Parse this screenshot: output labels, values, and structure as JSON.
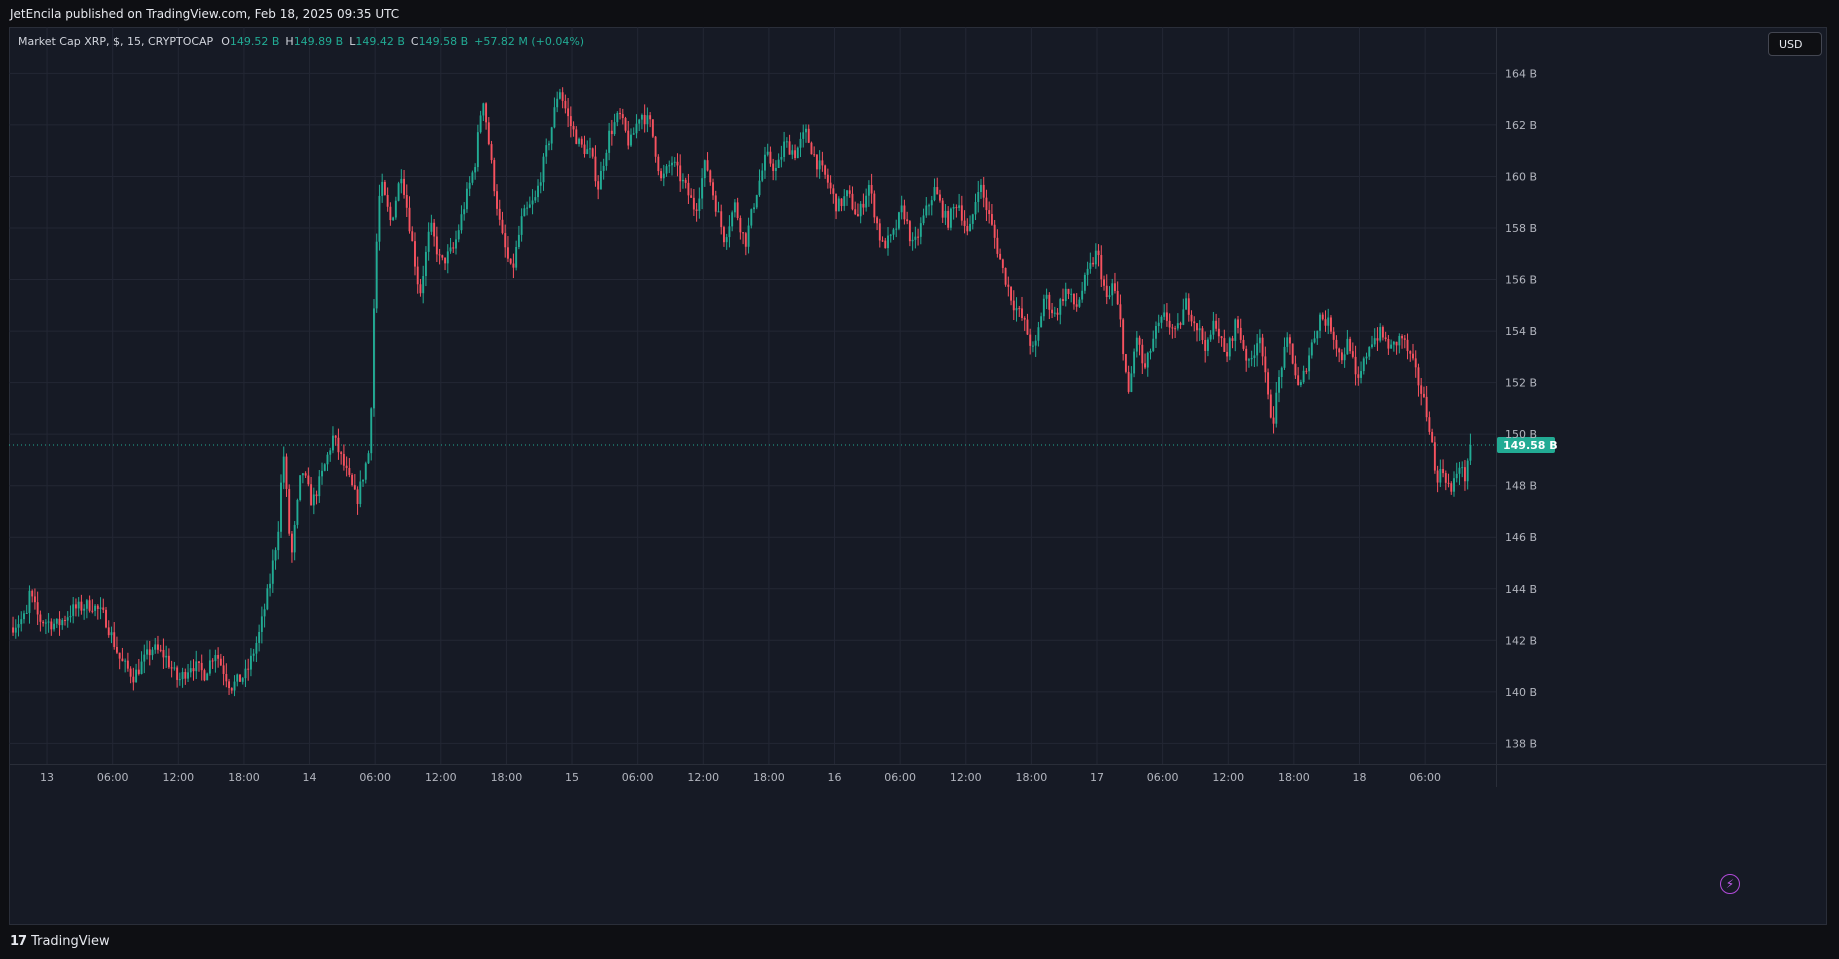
{
  "publisher": "JetEncila published on TradingView.com, Feb 18, 2025 09:35 UTC",
  "legend": {
    "symbol": "Market Cap XRP, $, 15, CRYPTOCAP",
    "o_label": "O",
    "o_value": "149.52 B",
    "h_label": "H",
    "h_value": "149.89 B",
    "l_label": "L",
    "l_value": "149.42 B",
    "c_label": "C",
    "c_value": "149.58 B",
    "change": "+57.82 M (+0.04%)"
  },
  "currency_button": "USD",
  "brand": "TradingView",
  "colors": {
    "up": "#22ab94",
    "down": "#f7525f",
    "grid": "#232734",
    "background": "#161a25"
  },
  "icons": {
    "logo": "tradingview-logo-icon",
    "bolt": "lightning-icon"
  },
  "chart_data": {
    "type": "candlestick",
    "timeframe": "15",
    "unit": "B",
    "ylim": [
      137.2,
      165.8
    ],
    "y_ticks": [
      {
        "value": 164,
        "label": "164 B"
      },
      {
        "value": 162,
        "label": "162 B"
      },
      {
        "value": 160,
        "label": "160 B"
      },
      {
        "value": 158,
        "label": "158 B"
      },
      {
        "value": 156,
        "label": "156 B"
      },
      {
        "value": 154,
        "label": "154 B"
      },
      {
        "value": 152,
        "label": "152 B"
      },
      {
        "value": 150,
        "label": "150 B"
      },
      {
        "value": 148,
        "label": "148 B"
      },
      {
        "value": 146,
        "label": "146 B"
      },
      {
        "value": 144,
        "label": "144 B"
      },
      {
        "value": 142,
        "label": "142 B"
      },
      {
        "value": 140,
        "label": "140 B"
      },
      {
        "value": 138,
        "label": "138 B"
      }
    ],
    "x_ticks": [
      {
        "t": 0.0,
        "label": "13"
      },
      {
        "t": 0.25,
        "label": "06:00"
      },
      {
        "t": 0.5,
        "label": "12:00"
      },
      {
        "t": 0.75,
        "label": "18:00"
      },
      {
        "t": 1.0,
        "label": "14"
      },
      {
        "t": 1.25,
        "label": "06:00"
      },
      {
        "t": 1.5,
        "label": "12:00"
      },
      {
        "t": 1.75,
        "label": "18:00"
      },
      {
        "t": 2.0,
        "label": "15"
      },
      {
        "t": 2.25,
        "label": "06:00"
      },
      {
        "t": 2.5,
        "label": "12:00"
      },
      {
        "t": 2.75,
        "label": "18:00"
      },
      {
        "t": 3.0,
        "label": "16"
      },
      {
        "t": 3.25,
        "label": "06:00"
      },
      {
        "t": 3.5,
        "label": "12:00"
      },
      {
        "t": 3.75,
        "label": "18:00"
      },
      {
        "t": 4.0,
        "label": "17"
      },
      {
        "t": 4.25,
        "label": "06:00"
      },
      {
        "t": 4.5,
        "label": "12:00"
      },
      {
        "t": 4.75,
        "label": "18:00"
      },
      {
        "t": 5.0,
        "label": "18"
      },
      {
        "t": 5.25,
        "label": "06:00"
      }
    ],
    "t_range": [
      -0.145,
      5.52
    ],
    "last_price": 149.58,
    "last_price_label": "149.58 B",
    "candle_step_days": 0.0104167,
    "anchors": [
      [
        -0.14,
        142.5
      ],
      [
        -0.07,
        143.0
      ],
      [
        -0.07,
        143.9
      ],
      [
        -0.03,
        142.8
      ],
      [
        0.04,
        142.6
      ],
      [
        0.1,
        143.2
      ],
      [
        0.17,
        143.4
      ],
      [
        0.22,
        142.9
      ],
      [
        0.28,
        141.2
      ],
      [
        0.33,
        140.6
      ],
      [
        0.4,
        141.7
      ],
      [
        0.45,
        141.4
      ],
      [
        0.5,
        140.4
      ],
      [
        0.55,
        141.1
      ],
      [
        0.6,
        140.7
      ],
      [
        0.64,
        141.6
      ],
      [
        0.7,
        140.2
      ],
      [
        0.76,
        140.7
      ],
      [
        0.81,
        142.3
      ],
      [
        0.85,
        144.3
      ],
      [
        0.88,
        146.3
      ],
      [
        0.9,
        149.4
      ],
      [
        0.93,
        145.1
      ],
      [
        0.97,
        148.7
      ],
      [
        1.01,
        147.3
      ],
      [
        1.05,
        148.5
      ],
      [
        1.09,
        149.9
      ],
      [
        1.13,
        148.8
      ],
      [
        1.18,
        147.4
      ],
      [
        1.23,
        149.5
      ],
      [
        1.25,
        156.5
      ],
      [
        1.27,
        159.8
      ],
      [
        1.31,
        158.2
      ],
      [
        1.35,
        160.2
      ],
      [
        1.38,
        158.2
      ],
      [
        1.42,
        155.4
      ],
      [
        1.46,
        158.1
      ],
      [
        1.5,
        156.6
      ],
      [
        1.55,
        157.2
      ],
      [
        1.59,
        158.9
      ],
      [
        1.63,
        160.5
      ],
      [
        1.66,
        163.2
      ],
      [
        1.7,
        159.9
      ],
      [
        1.73,
        157.8
      ],
      [
        1.77,
        156.2
      ],
      [
        1.81,
        158.4
      ],
      [
        1.86,
        159.1
      ],
      [
        1.92,
        161.8
      ],
      [
        1.95,
        163.5
      ],
      [
        1.99,
        162.1
      ],
      [
        2.03,
        161.2
      ],
      [
        2.07,
        160.9
      ],
      [
        2.1,
        159.6
      ],
      [
        2.14,
        161.6
      ],
      [
        2.18,
        162.4
      ],
      [
        2.22,
        161.2
      ],
      [
        2.26,
        162.5
      ],
      [
        2.3,
        162.0
      ],
      [
        2.34,
        159.8
      ],
      [
        2.38,
        160.6
      ],
      [
        2.43,
        159.6
      ],
      [
        2.47,
        158.7
      ],
      [
        2.51,
        160.6
      ],
      [
        2.54,
        159.2
      ],
      [
        2.58,
        157.6
      ],
      [
        2.62,
        158.9
      ],
      [
        2.66,
        157.4
      ],
      [
        2.7,
        159.3
      ],
      [
        2.74,
        160.8
      ],
      [
        2.78,
        160.2
      ],
      [
        2.81,
        161.3
      ],
      [
        2.85,
        160.9
      ],
      [
        2.89,
        161.7
      ],
      [
        2.93,
        160.6
      ],
      [
        2.97,
        159.9
      ],
      [
        3.01,
        158.8
      ],
      [
        3.05,
        159.3
      ],
      [
        3.09,
        158.4
      ],
      [
        3.13,
        159.7
      ],
      [
        3.18,
        157.3
      ],
      [
        3.22,
        157.6
      ],
      [
        3.26,
        158.8
      ],
      [
        3.3,
        157.2
      ],
      [
        3.34,
        158.4
      ],
      [
        3.38,
        159.5
      ],
      [
        3.43,
        158.2
      ],
      [
        3.47,
        159.1
      ],
      [
        3.51,
        157.6
      ],
      [
        3.55,
        159.8
      ],
      [
        3.59,
        158.4
      ],
      [
        3.64,
        156.4
      ],
      [
        3.68,
        155.1
      ],
      [
        3.72,
        154.4
      ],
      [
        3.76,
        153.1
      ],
      [
        3.8,
        155.4
      ],
      [
        3.84,
        154.6
      ],
      [
        3.88,
        155.6
      ],
      [
        3.92,
        154.9
      ],
      [
        3.96,
        156.1
      ],
      [
        4.0,
        157.1
      ],
      [
        4.04,
        155.0
      ],
      [
        4.06,
        155.9
      ],
      [
        4.09,
        154.3
      ],
      [
        4.12,
        151.4
      ],
      [
        4.15,
        153.9
      ],
      [
        4.18,
        152.4
      ],
      [
        4.22,
        153.9
      ],
      [
        4.26,
        154.6
      ],
      [
        4.3,
        153.8
      ],
      [
        4.34,
        155.1
      ],
      [
        4.38,
        154.2
      ],
      [
        4.42,
        153.3
      ],
      [
        4.45,
        154.5
      ],
      [
        4.49,
        152.9
      ],
      [
        4.53,
        154.4
      ],
      [
        4.58,
        152.6
      ],
      [
        4.62,
        154.0
      ],
      [
        4.65,
        151.4
      ],
      [
        4.67,
        150.5
      ],
      [
        4.7,
        152.6
      ],
      [
        4.73,
        153.7
      ],
      [
        4.77,
        151.6
      ],
      [
        4.81,
        153.2
      ],
      [
        4.85,
        154.6
      ],
      [
        4.89,
        154.2
      ],
      [
        4.93,
        152.9
      ],
      [
        4.96,
        153.7
      ],
      [
        4.99,
        151.8
      ],
      [
        5.04,
        153.6
      ],
      [
        5.08,
        153.9
      ],
      [
        5.12,
        153.3
      ],
      [
        5.16,
        153.8
      ],
      [
        5.2,
        152.8
      ],
      [
        5.24,
        151.5
      ],
      [
        5.27,
        150.2
      ],
      [
        5.29,
        148.3
      ],
      [
        5.32,
        148.6
      ],
      [
        5.35,
        147.7
      ],
      [
        5.38,
        148.9
      ],
      [
        5.4,
        148.2
      ],
      [
        5.42,
        149.58
      ]
    ]
  }
}
